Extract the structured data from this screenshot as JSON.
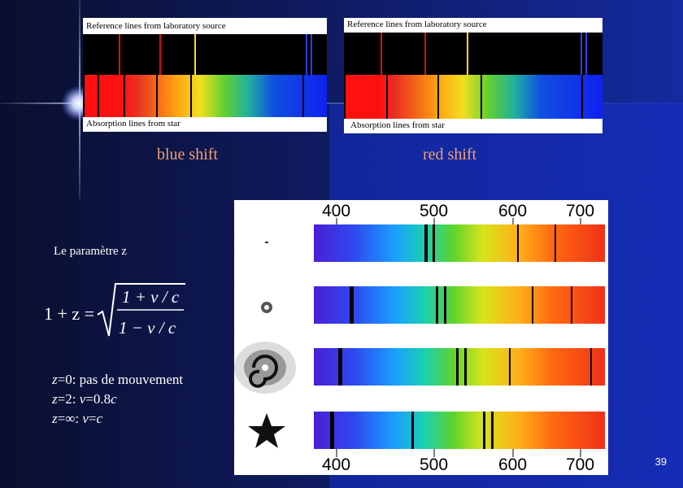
{
  "blue_panel": {
    "reference_label": "Reference lines from laboratory source",
    "absorption_label": "Absorption lines from star",
    "caption": "blue shift"
  },
  "red_panel": {
    "reference_label": "Reference lines from laboratory source",
    "absorption_label": "Absorption lines from star",
    "caption": "red shift"
  },
  "parameter_label": "Le paramètre z",
  "formula": {
    "lhs": "1 + z =",
    "numerator": "1 + v / c",
    "denominator": "1 − v / c"
  },
  "cases": [
    {
      "z": "z",
      "eq": "=0: pas de mouvement"
    },
    {
      "z": "z",
      "eq": "=2: ",
      "v": "v",
      "rest": "=0.8",
      "c": "c"
    },
    {
      "z": "z",
      "eq": "=∞: ",
      "v": "v",
      "rest": "=",
      "c": "c"
    }
  ],
  "wavelength_scale": {
    "top": [
      "400",
      "500",
      "600",
      "700"
    ],
    "bottom": [
      "400",
      "500",
      "600",
      "700"
    ]
  },
  "object_icons": [
    "dot-icon",
    "small-galaxy-icon",
    "spiral-galaxy-icon",
    "star-icon"
  ],
  "page_number": "39",
  "colors": {
    "caption": "#f0a070",
    "background": "#0f1a5e"
  }
}
